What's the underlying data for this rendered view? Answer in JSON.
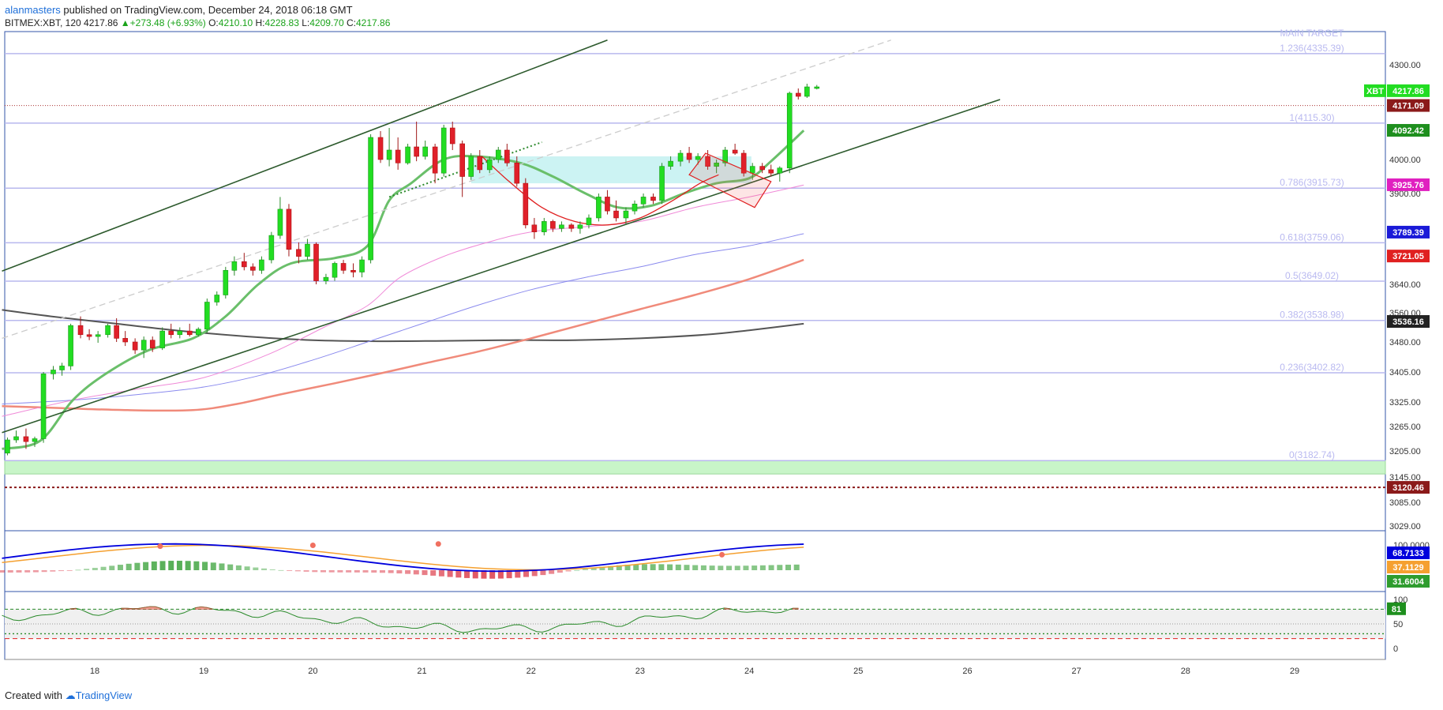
{
  "header": {
    "author": "alanmasters",
    "published_text": " published on TradingView.com, December 24, 2018 06:18 GMT",
    "symbol": "BITMEX:XBT, 120",
    "last": "4217.86",
    "change": "+273.48 (+6.93%)",
    "o_label": "O:",
    "o_value": "4210.10",
    "h_label": "H:",
    "h_value": "4228.83",
    "l_label": "L:",
    "l_value": "4209.70",
    "c_label": "C:",
    "c_value": "4217.86"
  },
  "footer": {
    "created_with": "Created with",
    "brand": "TradingView"
  },
  "colors": {
    "up": "#22dd22",
    "down": "#e0202a",
    "fib": "#b8b8ee",
    "channel": "#2d5a2d",
    "ema_green": "#6abf6a",
    "ma_pink": "#f08ad8",
    "ma_blue": "#8a8aee",
    "ma_salmon": "#f08a7a",
    "ma_dark": "#555555"
  },
  "chart_data": {
    "type": "candlestick",
    "x_ticks": [
      "18",
      "19",
      "20",
      "21",
      "22",
      "23",
      "24",
      "25",
      "26",
      "27",
      "28",
      "29"
    ],
    "x_tick_days": [
      18,
      19,
      20,
      21,
      22,
      23,
      24,
      25,
      26,
      27,
      28,
      29
    ],
    "xlim": [
      17.15,
      29.9
    ],
    "y_ticks": [
      "4300.00",
      "4000.00",
      "3900.00",
      "3640.00",
      "3560.00",
      "3480.00",
      "3405.00",
      "3325.00",
      "3265.00",
      "3205.00",
      "3145.00",
      "3085.00",
      "3029.00"
    ],
    "price_labels": [
      {
        "text": "XBT",
        "value": "4217.86",
        "price": 4217.86,
        "color": "#22dd22"
      },
      {
        "text": "",
        "value": "4171.09",
        "price": 4171.09,
        "color": "#8b1a1a"
      },
      {
        "text": "",
        "value": "4092.42",
        "price": 4092.42,
        "color": "#1e8f1e"
      },
      {
        "text": "",
        "value": "3925.76",
        "price": 3925.76,
        "color": "#e020c0"
      },
      {
        "text": "",
        "value": "3789.39",
        "price": 3789.39,
        "color": "#1a1ad8"
      },
      {
        "text": "",
        "value": "3721.05",
        "price": 3721.05,
        "color": "#e02020"
      },
      {
        "text": "",
        "value": "3536.16",
        "price": 3536.16,
        "color": "#222222"
      },
      {
        "text": "",
        "value": "3120.46",
        "price": 3120.46,
        "color": "#8b1a1a"
      }
    ],
    "fib_levels": [
      {
        "label": "1.236(4335.39)",
        "price": 4335.39
      },
      {
        "label": "1(4115.30)",
        "price": 4115.3
      },
      {
        "label": "0.786(3915.73)",
        "price": 3915.73
      },
      {
        "label": "0.618(3759.06)",
        "price": 3759.06
      },
      {
        "label": "0.5(3649.02)",
        "price": 3649.02
      },
      {
        "label": "0.382(3538.98)",
        "price": 3538.98
      },
      {
        "label": "0.236(3402.82)",
        "price": 3402.82
      },
      {
        "label": "0(3182.74)",
        "price": 3182.74
      }
    ],
    "target_label": "MAIN TARGET",
    "support_zone": [
      3152,
      3182.74
    ],
    "candles": [
      [
        17.2,
        3200,
        3238,
        3195,
        3232
      ],
      [
        17.28,
        3232,
        3255,
        3225,
        3240
      ],
      [
        17.37,
        3240,
        3260,
        3210,
        3228
      ],
      [
        17.45,
        3228,
        3240,
        3215,
        3235
      ],
      [
        17.53,
        3235,
        3405,
        3225,
        3400
      ],
      [
        17.62,
        3400,
        3420,
        3385,
        3410
      ],
      [
        17.7,
        3410,
        3428,
        3395,
        3420
      ],
      [
        17.78,
        3420,
        3530,
        3410,
        3525
      ],
      [
        17.87,
        3525,
        3550,
        3490,
        3500
      ],
      [
        17.95,
        3500,
        3515,
        3485,
        3495
      ],
      [
        18.03,
        3495,
        3510,
        3478,
        3500
      ],
      [
        18.12,
        3500,
        3530,
        3492,
        3525
      ],
      [
        18.2,
        3525,
        3545,
        3480,
        3490
      ],
      [
        18.28,
        3490,
        3510,
        3470,
        3480
      ],
      [
        18.37,
        3480,
        3490,
        3450,
        3460
      ],
      [
        18.45,
        3460,
        3495,
        3440,
        3485
      ],
      [
        18.53,
        3485,
        3495,
        3455,
        3465
      ],
      [
        18.62,
        3465,
        3520,
        3460,
        3510
      ],
      [
        18.7,
        3510,
        3530,
        3490,
        3500
      ],
      [
        18.78,
        3500,
        3520,
        3490,
        3510
      ],
      [
        18.87,
        3510,
        3530,
        3495,
        3500
      ],
      [
        18.95,
        3500,
        3520,
        3495,
        3515
      ],
      [
        19.03,
        3515,
        3600,
        3505,
        3590
      ],
      [
        19.12,
        3590,
        3620,
        3580,
        3610
      ],
      [
        19.2,
        3610,
        3690,
        3600,
        3680
      ],
      [
        19.28,
        3680,
        3720,
        3665,
        3705
      ],
      [
        19.37,
        3705,
        3730,
        3680,
        3690
      ],
      [
        19.45,
        3690,
        3700,
        3665,
        3680
      ],
      [
        19.53,
        3680,
        3720,
        3670,
        3710
      ],
      [
        19.62,
        3710,
        3790,
        3700,
        3780
      ],
      [
        19.7,
        3780,
        3890,
        3770,
        3855
      ],
      [
        19.78,
        3855,
        3870,
        3720,
        3740
      ],
      [
        19.87,
        3740,
        3760,
        3700,
        3720
      ],
      [
        19.95,
        3720,
        3770,
        3710,
        3755
      ],
      [
        20.03,
        3755,
        3760,
        3640,
        3650
      ],
      [
        20.12,
        3650,
        3670,
        3640,
        3660
      ],
      [
        20.2,
        3660,
        3705,
        3650,
        3700
      ],
      [
        20.28,
        3700,
        3710,
        3670,
        3680
      ],
      [
        20.37,
        3680,
        3700,
        3660,
        3675
      ],
      [
        20.45,
        3675,
        3720,
        3660,
        3710
      ],
      [
        20.53,
        3710,
        4080,
        3700,
        4070
      ],
      [
        20.62,
        4070,
        4090,
        3990,
        4000
      ],
      [
        20.7,
        4000,
        4100,
        3980,
        4030
      ],
      [
        20.78,
        4030,
        4070,
        3970,
        3990
      ],
      [
        20.87,
        3990,
        4050,
        3985,
        4040
      ],
      [
        20.95,
        4040,
        4120,
        3995,
        4010
      ],
      [
        21.03,
        4010,
        4060,
        4000,
        4040
      ],
      [
        21.12,
        4040,
        4050,
        3930,
        3960
      ],
      [
        21.2,
        3960,
        4110,
        3950,
        4100
      ],
      [
        21.28,
        4100,
        4120,
        4030,
        4050
      ],
      [
        21.37,
        4050,
        4060,
        3890,
        3950
      ],
      [
        21.45,
        3950,
        4020,
        3940,
        4010
      ],
      [
        21.53,
        4010,
        4030,
        3960,
        3970
      ],
      [
        21.62,
        3970,
        4010,
        3960,
        4000
      ],
      [
        21.7,
        4000,
        4040,
        3990,
        4030
      ],
      [
        21.78,
        4030,
        4050,
        3980,
        3990
      ],
      [
        21.87,
        3990,
        4010,
        3920,
        3930
      ],
      [
        21.95,
        3930,
        3945,
        3800,
        3810
      ],
      [
        22.03,
        3810,
        3830,
        3770,
        3790
      ],
      [
        22.12,
        3790,
        3830,
        3780,
        3820
      ],
      [
        22.2,
        3820,
        3825,
        3790,
        3800
      ],
      [
        22.28,
        3800,
        3820,
        3790,
        3810
      ],
      [
        22.37,
        3810,
        3815,
        3790,
        3800
      ],
      [
        22.45,
        3800,
        3820,
        3785,
        3810
      ],
      [
        22.53,
        3810,
        3840,
        3800,
        3830
      ],
      [
        22.62,
        3830,
        3900,
        3820,
        3890
      ],
      [
        22.7,
        3890,
        3910,
        3840,
        3850
      ],
      [
        22.78,
        3850,
        3880,
        3820,
        3830
      ],
      [
        22.87,
        3830,
        3860,
        3810,
        3850
      ],
      [
        22.95,
        3850,
        3880,
        3840,
        3870
      ],
      [
        23.03,
        3870,
        3900,
        3860,
        3890
      ],
      [
        23.12,
        3890,
        3900,
        3870,
        3880
      ],
      [
        23.2,
        3880,
        3990,
        3870,
        3980
      ],
      [
        23.28,
        3980,
        4010,
        3970,
        3995
      ],
      [
        23.37,
        3995,
        4030,
        3980,
        4020
      ],
      [
        23.45,
        4020,
        4040,
        3990,
        4000
      ],
      [
        23.53,
        4000,
        4020,
        3985,
        4010
      ],
      [
        23.62,
        4010,
        4030,
        3970,
        3980
      ],
      [
        23.7,
        3980,
        4000,
        3960,
        3990
      ],
      [
        23.78,
        3990,
        4040,
        3980,
        4030
      ],
      [
        23.87,
        4030,
        4050,
        4015,
        4020
      ],
      [
        23.95,
        4020,
        4030,
        3950,
        3960
      ],
      [
        24.03,
        3960,
        3990,
        3940,
        3980
      ],
      [
        24.12,
        3980,
        3990,
        3960,
        3970
      ],
      [
        24.2,
        3970,
        3985,
        3950,
        3960
      ],
      [
        24.28,
        3960,
        3980,
        3935,
        3975
      ],
      [
        24.37,
        3975,
        4215,
        3960,
        4210
      ],
      [
        24.45,
        4210,
        4225,
        4190,
        4200
      ],
      [
        24.53,
        4200,
        4240,
        4195,
        4230
      ],
      [
        24.62,
        4225,
        4236,
        4222,
        4230
      ]
    ],
    "channel_upper": [
      [
        17.15,
        3678
      ],
      [
        22.7,
        4378
      ]
    ],
    "channel_lower": [
      [
        17.15,
        3250
      ],
      [
        26.3,
        4190
      ]
    ],
    "dashed_upper": [
      [
        17.15,
        3490
      ],
      [
        25.3,
        4378
      ]
    ],
    "dotted_segment": [
      [
        20.7,
        3890
      ],
      [
        22.1,
        4055
      ]
    ],
    "ma_dark": [
      [
        17.15,
        3568
      ],
      [
        17.6,
        3550
      ],
      [
        18.2,
        3530
      ],
      [
        18.8,
        3510
      ],
      [
        19.4,
        3495
      ],
      [
        20.0,
        3485
      ],
      [
        20.6,
        3482
      ],
      [
        21.2,
        3483
      ],
      [
        21.8,
        3485
      ],
      [
        22.4,
        3485
      ],
      [
        23.0,
        3490
      ],
      [
        23.6,
        3500
      ],
      [
        24.0,
        3512
      ],
      [
        24.5,
        3530
      ]
    ],
    "ma_salmon": [
      [
        17.15,
        3315
      ],
      [
        17.7,
        3310
      ],
      [
        18.3,
        3305
      ],
      [
        18.9,
        3305
      ],
      [
        19.3,
        3320
      ],
      [
        19.7,
        3345
      ],
      [
        20.2,
        3375
      ],
      [
        20.6,
        3400
      ],
      [
        21.0,
        3425
      ],
      [
        21.5,
        3455
      ],
      [
        22.0,
        3490
      ],
      [
        22.5,
        3530
      ],
      [
        23.0,
        3570
      ],
      [
        23.5,
        3610
      ],
      [
        24.0,
        3655
      ],
      [
        24.5,
        3710
      ]
    ],
    "ma_blue": [
      [
        17.15,
        3320
      ],
      [
        17.8,
        3330
      ],
      [
        18.4,
        3345
      ],
      [
        19.0,
        3365
      ],
      [
        19.5,
        3395
      ],
      [
        20.0,
        3435
      ],
      [
        20.5,
        3480
      ],
      [
        21.0,
        3530
      ],
      [
        21.5,
        3580
      ],
      [
        22.0,
        3625
      ],
      [
        22.5,
        3660
      ],
      [
        23.0,
        3690
      ],
      [
        23.5,
        3725
      ],
      [
        24.0,
        3750
      ],
      [
        24.5,
        3785
      ]
    ],
    "ma_pink": [
      [
        17.15,
        3290
      ],
      [
        17.8,
        3330
      ],
      [
        18.4,
        3360
      ],
      [
        19.0,
        3390
      ],
      [
        19.6,
        3450
      ],
      [
        20.1,
        3520
      ],
      [
        20.5,
        3580
      ],
      [
        20.8,
        3660
      ],
      [
        21.2,
        3720
      ],
      [
        21.6,
        3760
      ],
      [
        22.0,
        3790
      ],
      [
        22.5,
        3805
      ],
      [
        23.0,
        3820
      ],
      [
        23.5,
        3860
      ],
      [
        24.0,
        3890
      ],
      [
        24.5,
        3925
      ]
    ],
    "ema_green": [
      [
        17.15,
        3210
      ],
      [
        17.5,
        3230
      ],
      [
        17.8,
        3330
      ],
      [
        18.1,
        3400
      ],
      [
        18.5,
        3460
      ],
      [
        18.9,
        3490
      ],
      [
        19.2,
        3550
      ],
      [
        19.5,
        3640
      ],
      [
        19.8,
        3700
      ],
      [
        20.2,
        3715
      ],
      [
        20.5,
        3750
      ],
      [
        20.7,
        3880
      ],
      [
        20.9,
        3930
      ],
      [
        21.2,
        4000
      ],
      [
        21.5,
        4010
      ],
      [
        21.9,
        3990
      ],
      [
        22.2,
        3950
      ],
      [
        22.5,
        3900
      ],
      [
        22.8,
        3860
      ],
      [
        23.1,
        3865
      ],
      [
        23.4,
        3900
      ],
      [
        23.7,
        3930
      ],
      [
        24.0,
        3945
      ],
      [
        24.2,
        3995
      ],
      [
        24.5,
        4092
      ]
    ],
    "cup_arc": [
      [
        21.55,
        4010
      ],
      [
        21.8,
        3935
      ],
      [
        22.1,
        3860
      ],
      [
        22.4,
        3820
      ],
      [
        22.7,
        3810
      ],
      [
        23.0,
        3830
      ],
      [
        23.3,
        3880
      ],
      [
        23.55,
        3930
      ],
      [
        23.72,
        3955
      ]
    ],
    "cyan_zone": {
      "x": [
        21.45,
        24.02
      ],
      "y": [
        3930,
        4010
      ]
    },
    "pennant_box": [
      [
        23.6,
        4020
      ],
      [
        24.2,
        3935
      ],
      [
        24.05,
        3860
      ],
      [
        23.45,
        3955
      ]
    ],
    "stoch_panel": {
      "y_ticks": [
        "100.0000"
      ],
      "k_value": "68.7133",
      "d_value": "37.1129",
      "hist_value": "31.6004",
      "k_color": "#0000dd",
      "d_color": "#f5a030",
      "hist_up": "#2e9c2e",
      "hist_down": "#d82030"
    },
    "rsi_panel": {
      "y_ticks": [
        "100",
        "50",
        "0"
      ],
      "value": "81",
      "overbought": 80,
      "oversold": 20
    }
  }
}
